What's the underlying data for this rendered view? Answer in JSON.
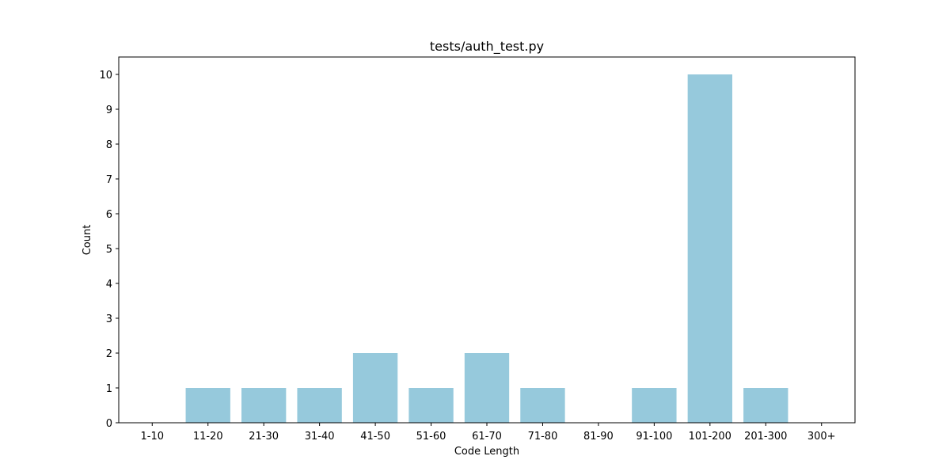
{
  "chart_data": {
    "type": "bar",
    "title": "tests/auth_test.py",
    "xlabel": "Code Length",
    "ylabel": "Count",
    "categories": [
      "1-10",
      "11-20",
      "21-30",
      "31-40",
      "41-50",
      "51-60",
      "61-70",
      "71-80",
      "81-90",
      "91-100",
      "101-200",
      "201-300",
      "300+"
    ],
    "values": [
      0,
      1,
      1,
      1,
      2,
      1,
      2,
      1,
      0,
      1,
      10,
      1,
      0
    ],
    "ylim": [
      0,
      10.5
    ],
    "yticks": [
      0,
      1,
      2,
      3,
      4,
      5,
      6,
      7,
      8,
      9,
      10
    ],
    "bar_color": "#96c9dc",
    "grid": false,
    "legend": false
  }
}
